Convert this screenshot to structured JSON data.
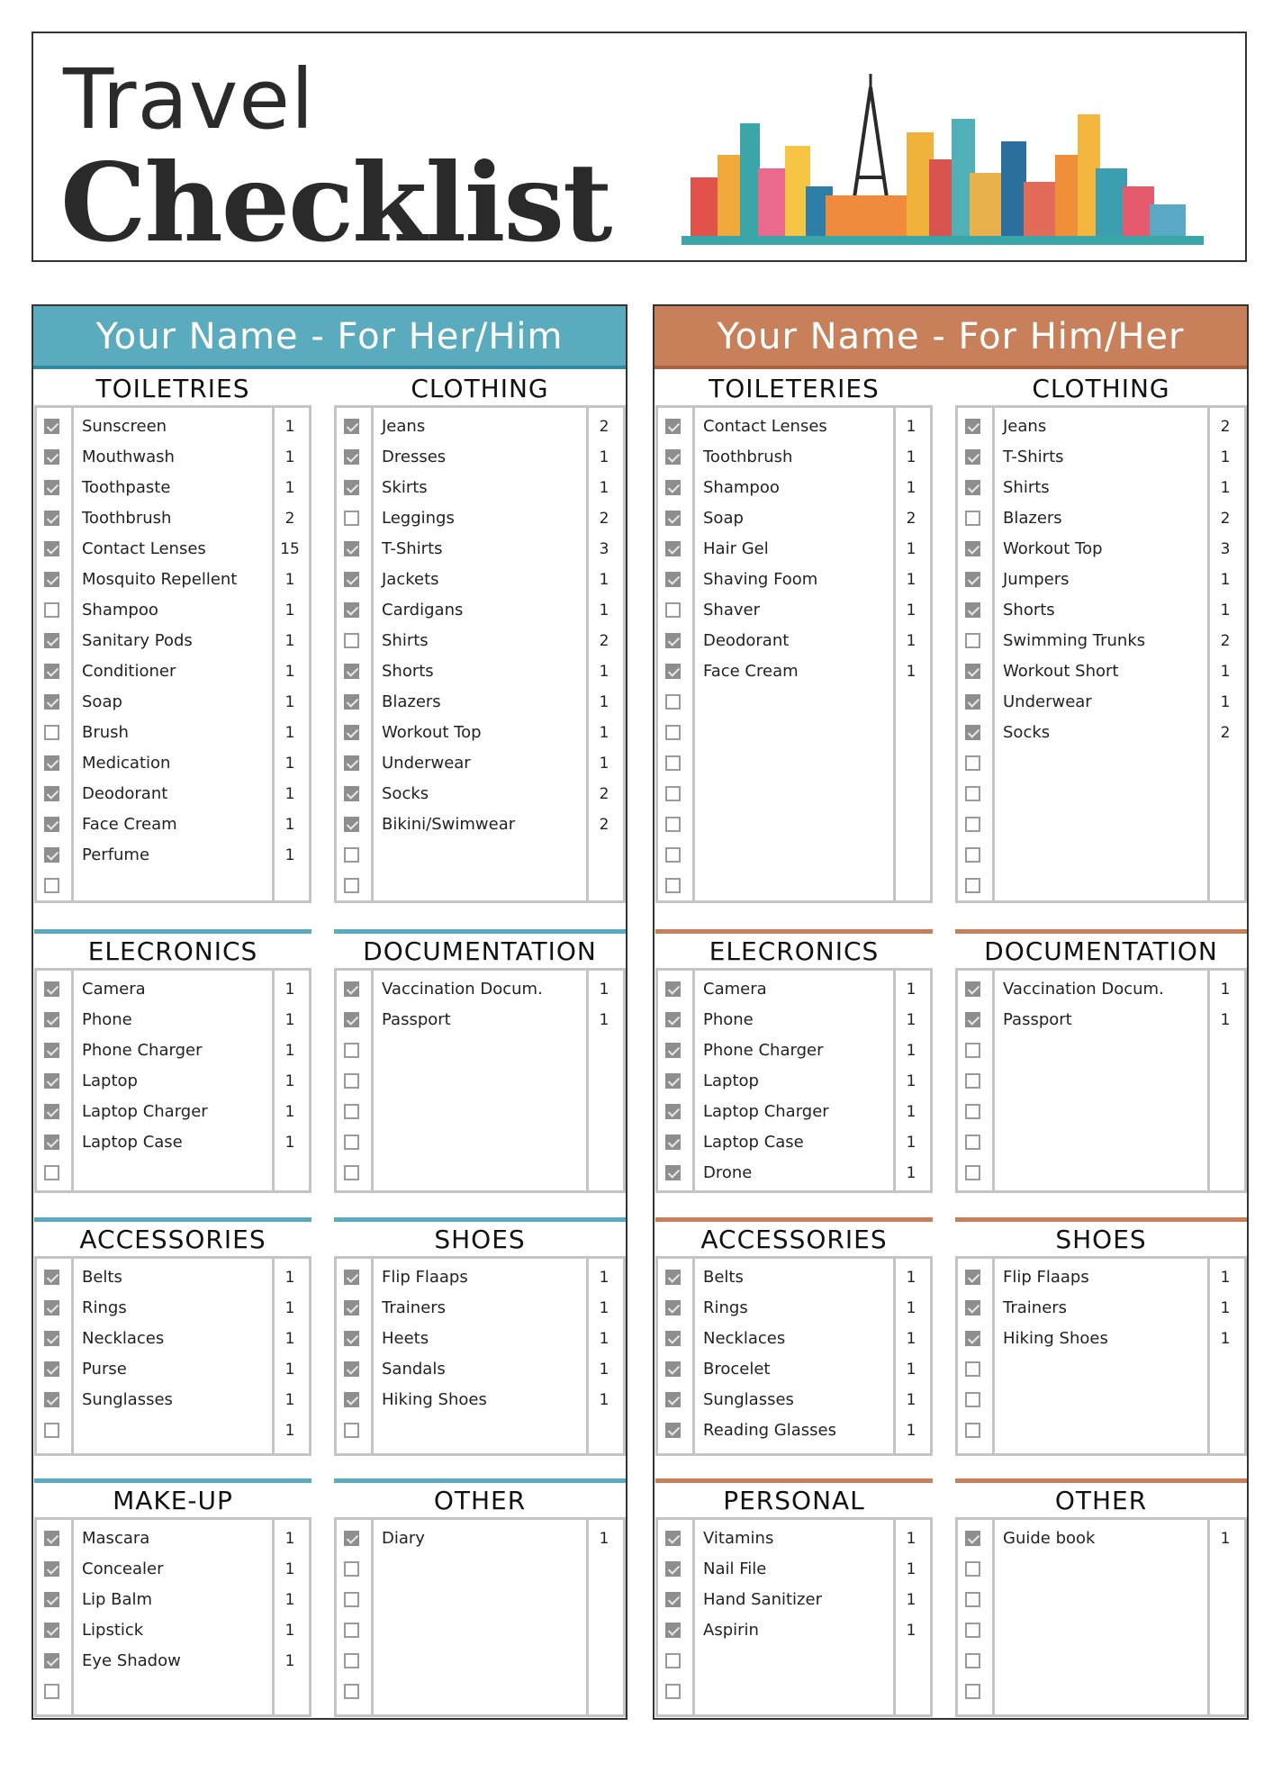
{
  "title": {
    "line1": "Travel",
    "line2": "Checklist"
  },
  "colors": {
    "teal": "#5aabbd",
    "teal_dark": "#2f8ba0",
    "orange": "#c8805a",
    "orange_dark": "#a8623f",
    "checkbox_checked": "#8e8e8e"
  },
  "panels": [
    {
      "title": "Your Name - For Her/Him",
      "accent": "teal",
      "sections": [
        {
          "heading": "TOILETRIES",
          "rows": [
            {
              "label": "Sunscreen",
              "qty": "1",
              "checked": true
            },
            {
              "label": "Mouthwash",
              "qty": "1",
              "checked": true
            },
            {
              "label": "Toothpaste",
              "qty": "1",
              "checked": true
            },
            {
              "label": "Toothbrush",
              "qty": "2",
              "checked": true
            },
            {
              "label": "Contact Lenses",
              "qty": "15",
              "checked": true
            },
            {
              "label": "Mosquito Repellent",
              "qty": "1",
              "checked": true
            },
            {
              "label": "Shampoo",
              "qty": "1",
              "checked": false
            },
            {
              "label": "Sanitary Pods",
              "qty": "1",
              "checked": true
            },
            {
              "label": "Conditioner",
              "qty": "1",
              "checked": true
            },
            {
              "label": "Soap",
              "qty": "1",
              "checked": true
            },
            {
              "label": "Brush",
              "qty": "1",
              "checked": false
            },
            {
              "label": "Medication",
              "qty": "1",
              "checked": true
            },
            {
              "label": "Deodorant",
              "qty": "1",
              "checked": true
            },
            {
              "label": "Face Cream",
              "qty": "1",
              "checked": true
            },
            {
              "label": "Perfume",
              "qty": "1",
              "checked": true
            },
            {
              "checked": false
            }
          ]
        },
        {
          "heading": "CLOTHING",
          "rows": [
            {
              "label": "Jeans",
              "qty": "2",
              "checked": true
            },
            {
              "label": "Dresses",
              "qty": "1",
              "checked": true
            },
            {
              "label": "Skirts",
              "qty": "1",
              "checked": true
            },
            {
              "label": "Leggings",
              "qty": "2",
              "checked": false
            },
            {
              "label": "T-Shirts",
              "qty": "3",
              "checked": true
            },
            {
              "label": "Jackets",
              "qty": "1",
              "checked": true
            },
            {
              "label": "Cardigans",
              "qty": "1",
              "checked": true
            },
            {
              "label": "Shirts",
              "qty": "2",
              "checked": false
            },
            {
              "label": "Shorts",
              "qty": "1",
              "checked": true
            },
            {
              "label": "Blazers",
              "qty": "1",
              "checked": true
            },
            {
              "label": "Workout Top",
              "qty": "1",
              "checked": true
            },
            {
              "label": "Underwear",
              "qty": "1",
              "checked": true
            },
            {
              "label": "Socks",
              "qty": "2",
              "checked": true
            },
            {
              "label": "Bikini/Swimwear",
              "qty": "2",
              "checked": true
            },
            {
              "checked": false
            },
            {
              "checked": false
            }
          ]
        },
        {
          "heading": "ELECRONICS",
          "rows": [
            {
              "label": "Camera",
              "qty": "1",
              "checked": true
            },
            {
              "label": "Phone",
              "qty": "1",
              "checked": true
            },
            {
              "label": "Phone Charger",
              "qty": "1",
              "checked": true
            },
            {
              "label": "Laptop",
              "qty": "1",
              "checked": true
            },
            {
              "label": "Laptop Charger",
              "qty": "1",
              "checked": true
            },
            {
              "label": "Laptop Case",
              "qty": "1",
              "checked": true
            },
            {
              "checked": false
            }
          ]
        },
        {
          "heading": "DOCUMENTATION",
          "rows": [
            {
              "label": "Vaccination Docum.",
              "qty": "1",
              "checked": true
            },
            {
              "label": "Passport",
              "qty": "1",
              "checked": true
            },
            {
              "checked": false
            },
            {
              "checked": false
            },
            {
              "checked": false
            },
            {
              "checked": false
            },
            {
              "checked": false
            }
          ]
        },
        {
          "heading": "ACCESSORIES",
          "rows": [
            {
              "label": "Belts",
              "qty": "1",
              "checked": true
            },
            {
              "label": "Rings",
              "qty": "1",
              "checked": true
            },
            {
              "label": "Necklaces",
              "qty": "1",
              "checked": true
            },
            {
              "label": "Purse",
              "qty": "1",
              "checked": true
            },
            {
              "label": "Sunglasses",
              "qty": "1",
              "checked": true
            },
            {
              "qty": "1",
              "checked": false
            }
          ]
        },
        {
          "heading": "SHOES",
          "rows": [
            {
              "label": "Flip Flaaps",
              "qty": "1",
              "checked": true
            },
            {
              "label": "Trainers",
              "qty": "1",
              "checked": true
            },
            {
              "label": "Heets",
              "qty": "1",
              "checked": true
            },
            {
              "label": "Sandals",
              "qty": "1",
              "checked": true
            },
            {
              "label": "Hiking Shoes",
              "qty": "1",
              "checked": true
            },
            {
              "checked": false
            }
          ]
        },
        {
          "heading": "MAKE-UP",
          "rows": [
            {
              "label": "Mascara",
              "qty": "1",
              "checked": true
            },
            {
              "label": "Concealer",
              "qty": "1",
              "checked": true
            },
            {
              "label": "Lip Balm",
              "qty": "1",
              "checked": true
            },
            {
              "label": "Lipstick",
              "qty": "1",
              "checked": true
            },
            {
              "label": "Eye Shadow",
              "qty": "1",
              "checked": true
            },
            {
              "checked": false
            }
          ]
        },
        {
          "heading": "OTHER",
          "rows": [
            {
              "label": "Diary",
              "qty": "1",
              "checked": true
            },
            {
              "checked": false
            },
            {
              "checked": false
            },
            {
              "checked": false
            },
            {
              "checked": false
            },
            {
              "checked": false
            }
          ]
        }
      ]
    },
    {
      "title": "Your Name - For Him/Her",
      "accent": "orange",
      "sections": [
        {
          "heading": "TOILETERIES",
          "rows": [
            {
              "label": "Contact Lenses",
              "qty": "1",
              "checked": true
            },
            {
              "label": "Toothbrush",
              "qty": "1",
              "checked": true
            },
            {
              "label": "Shampoo",
              "qty": "1",
              "checked": true
            },
            {
              "label": "Soap",
              "qty": "2",
              "checked": true
            },
            {
              "label": "Hair Gel",
              "qty": "1",
              "checked": true
            },
            {
              "label": "Shaving Foom",
              "qty": "1",
              "checked": true
            },
            {
              "label": "Shaver",
              "qty": "1",
              "checked": false
            },
            {
              "label": "Deodorant",
              "qty": "1",
              "checked": true
            },
            {
              "label": "Face Cream",
              "qty": "1",
              "checked": true
            },
            {
              "checked": false
            },
            {
              "checked": false
            },
            {
              "checked": false
            },
            {
              "checked": false
            },
            {
              "checked": false
            },
            {
              "checked": false
            },
            {
              "checked": false
            }
          ]
        },
        {
          "heading": "CLOTHING",
          "rows": [
            {
              "label": "Jeans",
              "qty": "2",
              "checked": true
            },
            {
              "label": "T-Shirts",
              "qty": "1",
              "checked": true
            },
            {
              "label": "Shirts",
              "qty": "1",
              "checked": true
            },
            {
              "label": "Blazers",
              "qty": "2",
              "checked": false
            },
            {
              "label": "Workout Top",
              "qty": "3",
              "checked": true
            },
            {
              "label": "Jumpers",
              "qty": "1",
              "checked": true
            },
            {
              "label": "Shorts",
              "qty": "1",
              "checked": true
            },
            {
              "label": "Swimming Trunks",
              "qty": "2",
              "checked": false
            },
            {
              "label": "Workout Short",
              "qty": "1",
              "checked": true
            },
            {
              "label": "Underwear",
              "qty": "1",
              "checked": true
            },
            {
              "label": "Socks",
              "qty": "2",
              "checked": true
            },
            {
              "checked": false
            },
            {
              "checked": false
            },
            {
              "checked": false
            },
            {
              "checked": false
            },
            {
              "checked": false
            }
          ]
        },
        {
          "heading": "ELECRONICS",
          "rows": [
            {
              "label": "Camera",
              "qty": "1",
              "checked": true
            },
            {
              "label": "Phone",
              "qty": "1",
              "checked": true
            },
            {
              "label": "Phone Charger",
              "qty": "1",
              "checked": true
            },
            {
              "label": "Laptop",
              "qty": "1",
              "checked": true
            },
            {
              "label": "Laptop Charger",
              "qty": "1",
              "checked": true
            },
            {
              "label": "Laptop Case",
              "qty": "1",
              "checked": true
            },
            {
              "label": "Drone",
              "qty": "1",
              "checked": true
            }
          ]
        },
        {
          "heading": "DOCUMENTATION",
          "rows": [
            {
              "label": "Vaccination Docum.",
              "qty": "1",
              "checked": true
            },
            {
              "label": "Passport",
              "qty": "1",
              "checked": true
            },
            {
              "checked": false
            },
            {
              "checked": false
            },
            {
              "checked": false
            },
            {
              "checked": false
            },
            {
              "checked": false
            }
          ]
        },
        {
          "heading": "ACCESSORIES",
          "rows": [
            {
              "label": "Belts",
              "qty": "1",
              "checked": true
            },
            {
              "label": "Rings",
              "qty": "1",
              "checked": true
            },
            {
              "label": "Necklaces",
              "qty": "1",
              "checked": true
            },
            {
              "label": "Brocelet",
              "qty": "1",
              "checked": true
            },
            {
              "label": "Sunglasses",
              "qty": "1",
              "checked": true
            },
            {
              "label": "Reading Glasses",
              "qty": "1",
              "checked": true
            }
          ]
        },
        {
          "heading": "SHOES",
          "rows": [
            {
              "label": "Flip Flaaps",
              "qty": "1",
              "checked": true
            },
            {
              "label": "Trainers",
              "qty": "1",
              "checked": true
            },
            {
              "label": "Hiking Shoes",
              "qty": "1",
              "checked": true
            },
            {
              "checked": false
            },
            {
              "checked": false
            },
            {
              "checked": false
            }
          ]
        },
        {
          "heading": "PERSONAL",
          "rows": [
            {
              "label": "Vitamins",
              "qty": "1",
              "checked": true
            },
            {
              "label": "Nail File",
              "qty": "1",
              "checked": true
            },
            {
              "label": "Hand Sanitizer",
              "qty": "1",
              "checked": true
            },
            {
              "label": "Aspirin",
              "qty": "1",
              "checked": true
            },
            {
              "checked": false
            },
            {
              "checked": false
            }
          ]
        },
        {
          "heading": "OTHER",
          "rows": [
            {
              "label": "Guide book",
              "qty": "1",
              "checked": true
            },
            {
              "checked": false
            },
            {
              "checked": false
            },
            {
              "checked": false
            },
            {
              "checked": false
            },
            {
              "checked": false
            }
          ]
        }
      ]
    }
  ]
}
